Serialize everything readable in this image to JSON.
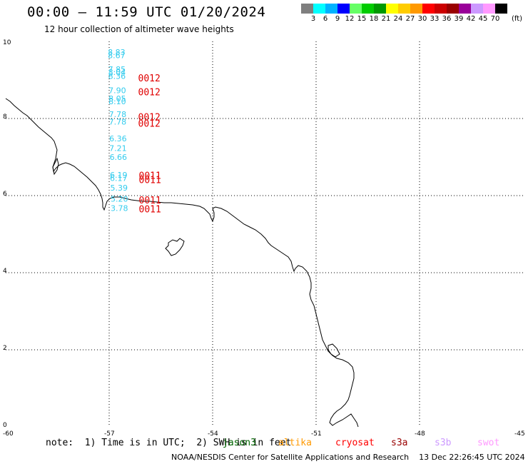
{
  "header": {
    "title": "00:00 – 11:59 UTC 01/20/2024",
    "subtitle": "12 hour collection of altimeter wave heights"
  },
  "colorbar": {
    "colors": [
      "#7f7f7f",
      "#00ffff",
      "#00b2ff",
      "#0000ff",
      "#66ff66",
      "#00cc00",
      "#009900",
      "#ffff00",
      "#ffcc00",
      "#ff9900",
      "#ff0000",
      "#cc0000",
      "#990000",
      "#990099",
      "#cc99ff",
      "#ff99ff",
      "#000000"
    ],
    "labels": [
      "3",
      "6",
      "9",
      "12",
      "15",
      "18",
      "21",
      "24",
      "27",
      "30",
      "33",
      "36",
      "39",
      "42",
      "45",
      "70"
    ],
    "unit": "(ft)"
  },
  "map": {
    "lat_labels": [
      "10",
      "8",
      "6",
      "4",
      "2",
      "0"
    ],
    "lon_labels": [
      "-60",
      "-57",
      "-54",
      "-51",
      "-48",
      "-45"
    ],
    "observations": [
      {
        "lat": 9.72,
        "lon": -56.79,
        "value": "8.83",
        "color": "#33ccee"
      },
      {
        "lat": 9.64,
        "lon": -56.79,
        "value": "8.67",
        "color": "#33ccee"
      },
      {
        "lat": 9.28,
        "lon": -56.78,
        "value": "7.85",
        "color": "#33ccee"
      },
      {
        "lat": 9.2,
        "lon": -56.78,
        "value": "8.04",
        "color": "#33ccee"
      },
      {
        "lat": 9.1,
        "lon": -56.78,
        "value": "8.36",
        "color": "#33ccee"
      },
      {
        "lat": 8.73,
        "lon": -56.77,
        "value": "7.90",
        "color": "#33ccee"
      },
      {
        "lat": 8.52,
        "lon": -56.77,
        "value": "8.05",
        "color": "#33ccee"
      },
      {
        "lat": 8.44,
        "lon": -56.77,
        "value": "8.10",
        "color": "#33ccee"
      },
      {
        "lat": 8.11,
        "lon": -56.76,
        "value": "7.78",
        "color": "#33ccee"
      },
      {
        "lat": 7.92,
        "lon": -56.76,
        "value": "7.78",
        "color": "#33ccee"
      },
      {
        "lat": 7.48,
        "lon": -56.75,
        "value": "6.36",
        "color": "#33ccee"
      },
      {
        "lat": 7.23,
        "lon": -56.75,
        "value": "7.21",
        "color": "#33ccee"
      },
      {
        "lat": 7.0,
        "lon": -56.74,
        "value": "6.66",
        "color": "#33ccee"
      },
      {
        "lat": 6.54,
        "lon": -56.73,
        "value": "6.19",
        "color": "#33ccee"
      },
      {
        "lat": 6.45,
        "lon": -56.73,
        "value": "6.17",
        "color": "#33ccee"
      },
      {
        "lat": 6.2,
        "lon": -56.72,
        "value": "5.39",
        "color": "#33ccee"
      },
      {
        "lat": 5.92,
        "lon": -56.71,
        "value": "5.20",
        "color": "#33ccee"
      },
      {
        "lat": 5.68,
        "lon": -56.71,
        "value": "3.78",
        "color": "#33ccee"
      }
    ],
    "time_labels": [
      {
        "lat": 9.06,
        "lon": -56.12,
        "text": "0012",
        "color": "#e00000"
      },
      {
        "lat": 8.69,
        "lon": -56.12,
        "text": "0012",
        "color": "#e00000"
      },
      {
        "lat": 8.05,
        "lon": -56.12,
        "text": "0012",
        "color": "#e00000"
      },
      {
        "lat": 7.88,
        "lon": -56.12,
        "text": "0012",
        "color": "#e00000"
      },
      {
        "lat": 6.53,
        "lon": -56.1,
        "text": "0011",
        "color": "#e00000"
      },
      {
        "lat": 6.42,
        "lon": -56.1,
        "text": "0011",
        "color": "#e00000"
      },
      {
        "lat": 5.89,
        "lon": -56.1,
        "text": "0011",
        "color": "#e00000"
      },
      {
        "lat": 5.66,
        "lon": -56.1,
        "text": "0011",
        "color": "#e00000"
      }
    ]
  },
  "footer": {
    "note": "note:  1) Time is in UTC;  2) SWH is in feet",
    "satellites": [
      {
        "name": "jason3",
        "color": "#006600"
      },
      {
        "name": "altika",
        "color": "#ff9900"
      },
      {
        "name": "cryosat",
        "color": "#ff0000"
      },
      {
        "name": "s3a",
        "color": "#990000"
      },
      {
        "name": "s3b",
        "color": "#cc99ff"
      },
      {
        "name": "swot",
        "color": "#ff99ff"
      }
    ],
    "credit": "NOAA/NESDIS Center for Satellite Applications and Research    13 Dec 22:26:45 UTC 2024"
  }
}
